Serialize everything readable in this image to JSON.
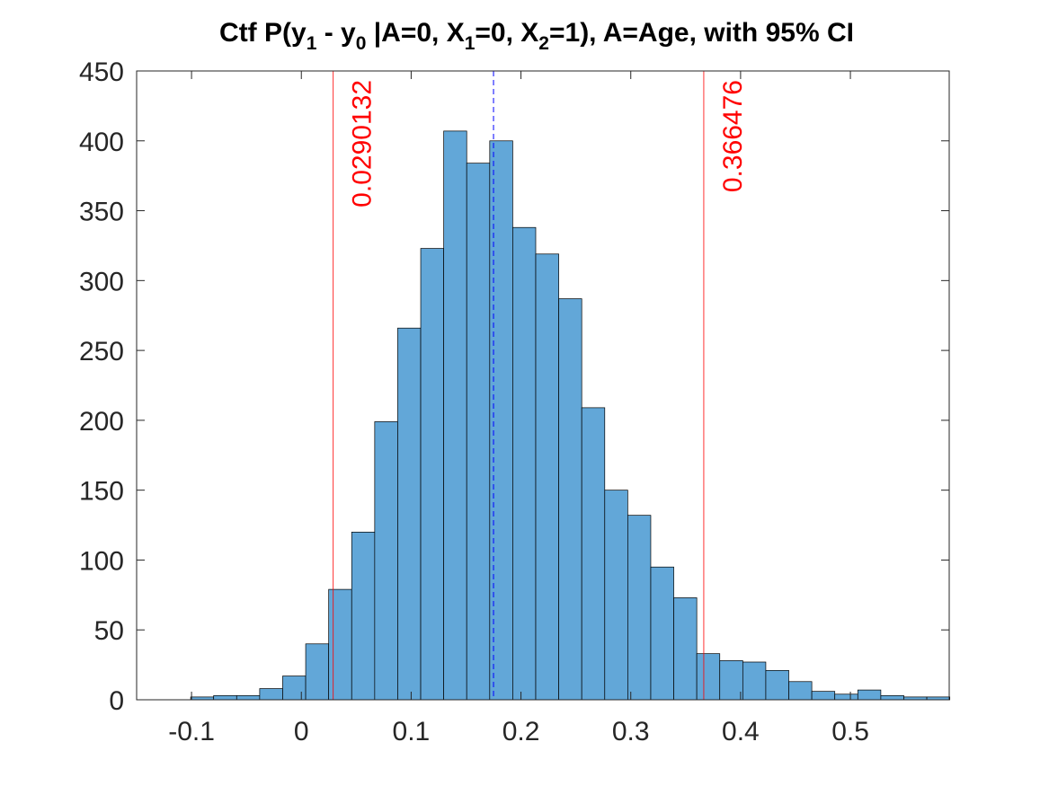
{
  "chart_data": {
    "type": "bar",
    "title": {
      "parts": [
        {
          "text": "Ctf P(y",
          "sub": false
        },
        {
          "text": "1",
          "sub": true
        },
        {
          "text": " - y",
          "sub": false
        },
        {
          "text": "0",
          "sub": true
        },
        {
          "text": " |A=0, X",
          "sub": false
        },
        {
          "text": "1",
          "sub": true
        },
        {
          "text": "=0, X",
          "sub": false
        },
        {
          "text": "2",
          "sub": true
        },
        {
          "text": "=1), A=Age, with 95% CI",
          "sub": false
        }
      ]
    },
    "xlabel": "",
    "ylabel": "",
    "xlim": [
      -0.15,
      0.59
    ],
    "ylim": [
      0,
      450
    ],
    "xticks": [
      -0.1,
      0,
      0.1,
      0.2,
      0.3,
      0.4,
      0.5
    ],
    "xtick_labels": [
      "-0.1",
      "0",
      "0.1",
      "0.2",
      "0.3",
      "0.4",
      "0.5"
    ],
    "yticks": [
      0,
      50,
      100,
      150,
      200,
      250,
      300,
      350,
      400,
      450
    ],
    "ytick_labels": [
      "0",
      "50",
      "100",
      "150",
      "200",
      "250",
      "300",
      "350",
      "400",
      "450"
    ],
    "bin_start": -0.1008,
    "bin_width": 0.02095,
    "counts": [
      2,
      3,
      3,
      8,
      17,
      40,
      79,
      120,
      199,
      266,
      323,
      407,
      384,
      400,
      338,
      319,
      287,
      209,
      150,
      132,
      95,
      73,
      33,
      28,
      27,
      21,
      13,
      6,
      4,
      7,
      3,
      2,
      2
    ],
    "bar_color": "#62a7d8",
    "edge_color": "#000000",
    "ci_lower": 0.0290132,
    "ci_upper": 0.366476,
    "ci_lower_label": "0.0290132",
    "ci_upper_label": "0.366476",
    "ci_color": "#ff0000",
    "mean_line": 0.175,
    "mean_color": "#0000ff",
    "grid": false
  }
}
